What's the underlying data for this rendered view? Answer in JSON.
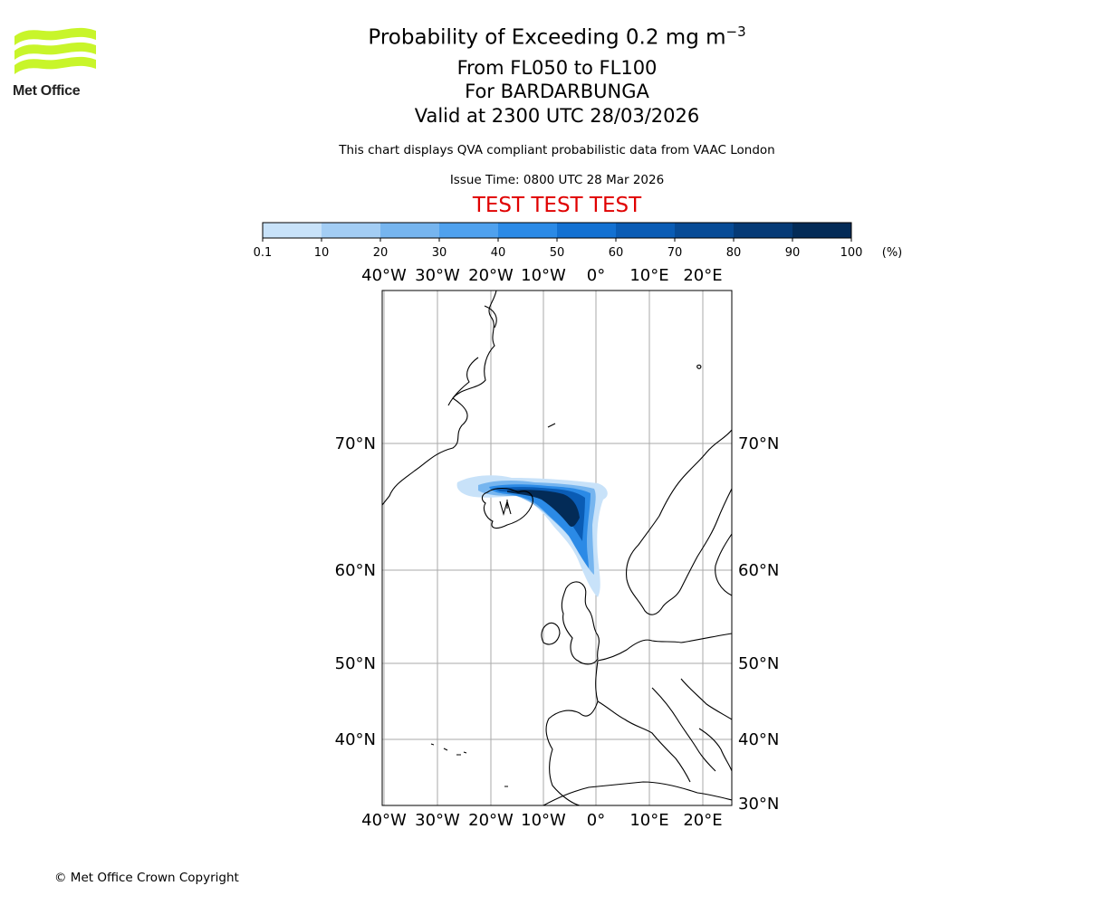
{
  "header": {
    "title_main": "Probability of Exceeding 0.2 mg m",
    "title_exp": "−3",
    "levels": "From FL050 to FL100",
    "volcano": "For BARDARBUNGA",
    "valid": "Valid at 2300 UTC 28/03/2026",
    "note": "This chart displays QVA compliant probabilistic data from VAAC London",
    "issue": "Issue Time: 0800 UTC 28 Mar 2026",
    "test_banner": "TEST TEST TEST"
  },
  "logo": {
    "text": "Met Office",
    "color": "#c8f52a"
  },
  "footer": {
    "copyright": "© Met Office Crown Copyright"
  },
  "colorbar": {
    "ticks": [
      "0.1",
      "10",
      "20",
      "30",
      "40",
      "50",
      "60",
      "70",
      "80",
      "90",
      "100"
    ],
    "unit": "(%)",
    "colors": [
      "#eaf3fd",
      "#c8e2f9",
      "#a3cdf4",
      "#76b5ef",
      "#4fa1ee",
      "#2b8ae6",
      "#1371d2",
      "#0a5cb5",
      "#074b96",
      "#053a76",
      "#032b57"
    ]
  },
  "map": {
    "lon_labels": [
      "40°W",
      "30°W",
      "20°W",
      "10°W",
      "0°",
      "10°E",
      "20°E"
    ],
    "lat_labels_left": [
      "70°N",
      "60°N",
      "50°N",
      "40°N"
    ],
    "lat_labels_right": [
      "70°N",
      "60°N",
      "50°N",
      "40°N",
      "30°N"
    ],
    "gridline_color": "#aaaaaa"
  }
}
